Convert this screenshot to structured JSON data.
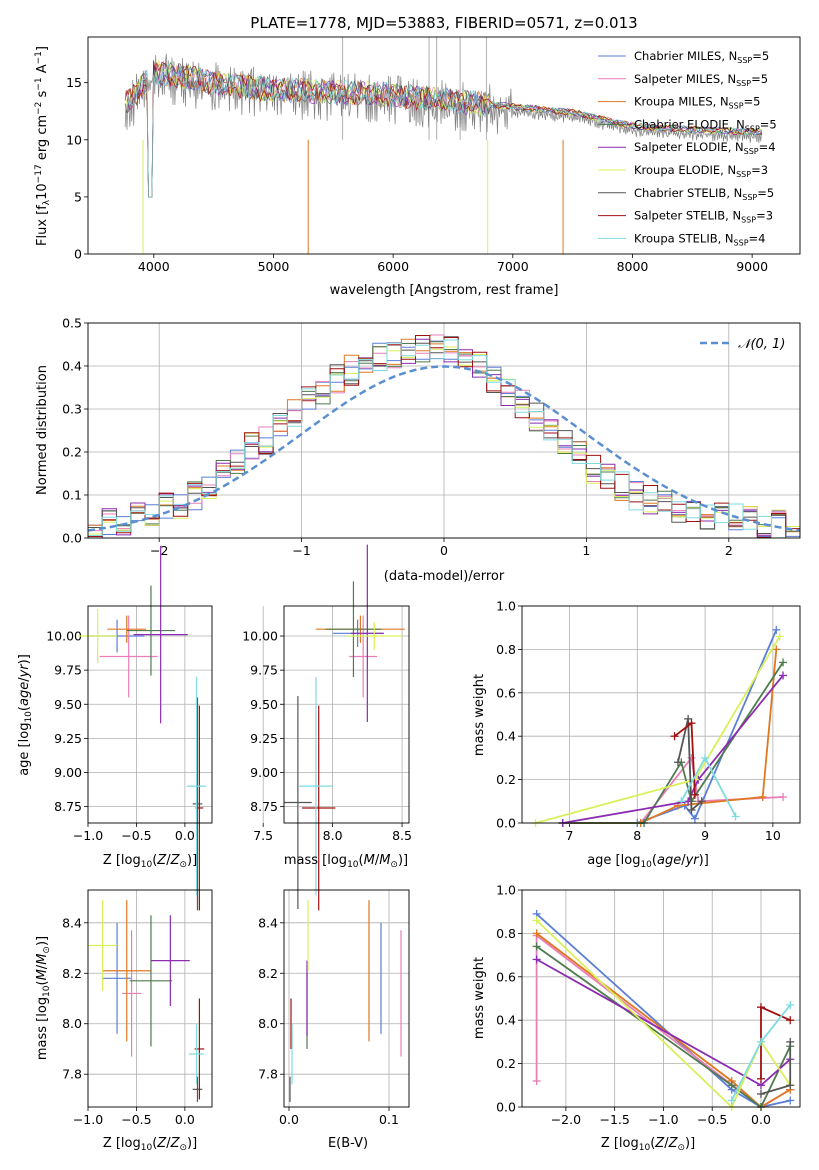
{
  "colors": {
    "series": [
      "#5b7fd6",
      "#e87fb8",
      "#e07820",
      "#4f7b4f",
      "#8b2cb0",
      "#d9f05a",
      "#555555",
      "#a01010",
      "#7edbe0"
    ],
    "grid": "#b0b0b0",
    "reference": "#5b8fd0"
  },
  "panel1": {
    "title": "PLATE=1778, MJD=53883, FIBERID=0571, z=0.013",
    "xlabel": "wavelength [Angstrom, rest frame]",
    "ylabel": "Flux [f_λ 10^-17 erg cm^-2 s^-1 A^-1]",
    "xticks": [
      "4000",
      "5000",
      "6000",
      "7000",
      "8000",
      "9000"
    ],
    "yticks": [
      "0",
      "5",
      "10",
      "15"
    ],
    "legend": [
      {
        "label": "Chabrier MILES, N",
        "sub": "SSP",
        "tail": "=5"
      },
      {
        "label": "Salpeter MILES, N",
        "sub": "SSP",
        "tail": "=5"
      },
      {
        "label": "Kroupa MILES, N",
        "sub": "SSP",
        "tail": "=5"
      },
      {
        "label": "Chabrier ELODIE, N",
        "sub": "SSP",
        "tail": "=5"
      },
      {
        "label": "Salpeter ELODIE, N",
        "sub": "SSP",
        "tail": "=4"
      },
      {
        "label": "Kroupa ELODIE, N",
        "sub": "SSP",
        "tail": "=3"
      },
      {
        "label": "Chabrier STELIB, N",
        "sub": "SSP",
        "tail": "=5"
      },
      {
        "label": "Salpeter STELIB, N",
        "sub": "SSP",
        "tail": "=3"
      },
      {
        "label": "Kroupa STELIB, N",
        "sub": "SSP",
        "tail": "=4"
      }
    ]
  },
  "panel2": {
    "xlabel": "(data-model)/error",
    "ylabel": "Normed distribution",
    "xticks": [
      "−2",
      "−1",
      "0",
      "1",
      "2"
    ],
    "yticks": [
      "0.0",
      "0.1",
      "0.2",
      "0.3",
      "0.4",
      "0.5"
    ],
    "legend_label": "𝒩(0, 1)"
  },
  "panel3": {
    "xlabel": "Z [log₁₀(Z/Z⊙)]",
    "ylabel": "age  [log₁₀(age/yr)]",
    "xticks": [
      "−1.0",
      "−0.5",
      "0.0"
    ],
    "yticks": [
      "8.75",
      "9.00",
      "9.25",
      "9.50",
      "9.75",
      "10.00"
    ]
  },
  "panel4": {
    "xlabel": "mass [log₁₀(M/M⊙)]",
    "xticks": [
      "7.5",
      "8.0",
      "8.5"
    ],
    "yticks": [
      "8.75",
      "9.00",
      "9.25",
      "9.50",
      "9.75",
      "10.00"
    ]
  },
  "panel5": {
    "xlabel": "age  [log₁₀(age/yr)]",
    "ylabel": "mass weight",
    "xticks": [
      "7",
      "8",
      "9",
      "10"
    ],
    "yticks": [
      "0.0",
      "0.2",
      "0.4",
      "0.6",
      "0.8",
      "1.0"
    ]
  },
  "panel6": {
    "xlabel": "Z [log₁₀(Z/Z⊙)]",
    "ylabel": "mass [log₁₀(M/M⊙)]",
    "xticks": [
      "−1.0",
      "−0.5",
      "0.0"
    ],
    "yticks": [
      "7.8",
      "8.0",
      "8.2",
      "8.4"
    ]
  },
  "panel7": {
    "xlabel": "E(B-V)",
    "xticks": [
      "0.0",
      "0.1"
    ],
    "yticks": [
      "7.8",
      "8.0",
      "8.2",
      "8.4"
    ]
  },
  "panel8": {
    "xlabel": "Z [log₁₀(Z/Z⊙)]",
    "ylabel": "mass weight",
    "xticks": [
      "−2.0",
      "−1.5",
      "−1.0",
      "−0.5",
      "0.0"
    ],
    "yticks": [
      "0.0",
      "0.2",
      "0.4",
      "0.6",
      "0.8",
      "1.0"
    ]
  },
  "chart_data": [
    {
      "type": "line",
      "title": "PLATE=1778, MJD=53883, FIBERID=0571, z=0.013",
      "xlabel": "wavelength [Angstrom, rest frame]",
      "ylabel": "Flux [f_λ 10^-17 erg cm^-2 s^-1 A^-1]",
      "xlim": [
        3450,
        9400
      ],
      "ylim": [
        0,
        19
      ],
      "legend_position": "top-right",
      "data": {
        "x": [
          3800,
          4000,
          4200,
          4500,
          5000,
          5500,
          6000,
          6500,
          7000,
          7500,
          8000,
          8500,
          9000
        ],
        "y": [
          13,
          15.5,
          15.2,
          14.6,
          14.0,
          13.8,
          13.5,
          13.0,
          12.5,
          12.0,
          10.8,
          10.5,
          10.3
        ]
      },
      "model": {
        "x": [
          3800,
          4000,
          4200,
          4500,
          5000,
          5500,
          6000,
          6500,
          7000,
          7500,
          8000,
          8500,
          9000
        ],
        "y": [
          14,
          15.8,
          15.3,
          14.7,
          14.2,
          13.9,
          13.6,
          13.1,
          12.6,
          11.8,
          10.8,
          10.5,
          10.3
        ]
      }
    },
    {
      "type": "bar",
      "xlabel": "(data-model)/error",
      "ylabel": "Normed distribution",
      "xlim": [
        -2.5,
        2.5
      ],
      "ylim": [
        0,
        0.5
      ],
      "legend_position": "top-right",
      "bin_width": 0.1,
      "histogram": [
        0.03,
        0.035,
        0.04,
        0.05,
        0.06,
        0.07,
        0.08,
        0.1,
        0.12,
        0.15,
        0.18,
        0.21,
        0.23,
        0.26,
        0.29,
        0.32,
        0.34,
        0.37,
        0.39,
        0.41,
        0.42,
        0.43,
        0.44,
        0.44,
        0.45,
        0.44,
        0.42,
        0.4,
        0.37,
        0.34,
        0.31,
        0.28,
        0.25,
        0.22,
        0.19,
        0.16,
        0.14,
        0.12,
        0.1,
        0.09,
        0.08,
        0.07,
        0.06,
        0.055,
        0.05,
        0.045,
        0.04,
        0.035,
        0.03,
        0.03
      ],
      "reference": "N(0,1)"
    },
    {
      "type": "scatter",
      "xlabel": "Z [log10(Z/Zsun)]",
      "ylabel": "age [log10(age/yr)]",
      "xlim": [
        -1.0,
        0.28
      ],
      "ylim": [
        8.63,
        10.22
      ],
      "points": [
        {
          "x": -0.7,
          "y": 10.0,
          "xerr": 0.28,
          "yerr": 0.12,
          "s": 0
        },
        {
          "x": -0.58,
          "y": 9.85,
          "xerr": 0.3,
          "yerr": 0.3,
          "s": 1
        },
        {
          "x": -0.6,
          "y": 10.05,
          "xerr": 0.2,
          "yerr": 0.1,
          "s": 2
        },
        {
          "x": -0.35,
          "y": 10.04,
          "xerr": 0.25,
          "yerr": 0.33,
          "s": 3
        },
        {
          "x": -0.25,
          "y": 10.01,
          "xerr": 0.28,
          "yerr": 0.65,
          "s": 4
        },
        {
          "x": -0.9,
          "y": 10.0,
          "xerr": 0.2,
          "yerr": 0.2,
          "s": 5
        },
        {
          "x": 0.13,
          "y": 8.77,
          "xerr": 0.05,
          "yerr": 0.78,
          "s": 6
        },
        {
          "x": 0.15,
          "y": 8.74,
          "xerr": 0.04,
          "yerr": 0.75,
          "s": 7
        },
        {
          "x": 0.12,
          "y": 8.9,
          "xerr": 0.1,
          "yerr": 0.8,
          "s": 8
        }
      ]
    },
    {
      "type": "scatter",
      "xlabel": "mass [log10(M/Msun)]",
      "ylabel": "age [log10(age/yr)]",
      "xlim": [
        7.65,
        8.55
      ],
      "ylim": [
        8.63,
        10.22
      ],
      "points": [
        {
          "x": 8.18,
          "y": 10.02,
          "xerr": 0.18,
          "yerr": 0.1,
          "s": 0
        },
        {
          "x": 8.22,
          "y": 9.85,
          "xerr": 0.1,
          "yerr": 0.3,
          "s": 1
        },
        {
          "x": 8.2,
          "y": 10.05,
          "xerr": 0.32,
          "yerr": 0.1,
          "s": 2
        },
        {
          "x": 8.15,
          "y": 10.05,
          "xerr": 0.2,
          "yerr": 0.35,
          "s": 3
        },
        {
          "x": 8.25,
          "y": 10.02,
          "xerr": 0.12,
          "yerr": 0.65,
          "s": 4
        },
        {
          "x": 8.3,
          "y": 10.0,
          "xerr": 0.2,
          "yerr": 0.1,
          "s": 5
        },
        {
          "x": 7.75,
          "y": 8.78,
          "xerr": 0.1,
          "yerr": 0.78,
          "s": 6
        },
        {
          "x": 7.9,
          "y": 8.74,
          "xerr": 0.12,
          "yerr": 0.75,
          "s": 7
        },
        {
          "x": 7.88,
          "y": 8.9,
          "xerr": 0.12,
          "yerr": 0.8,
          "s": 8
        }
      ]
    },
    {
      "type": "line",
      "xlabel": "age [log10(age/yr)]",
      "ylabel": "mass weight",
      "xlim": [
        6.3,
        10.4
      ],
      "ylim": [
        0,
        1
      ],
      "series": [
        {
          "x": [
            6.9,
            8.0,
            8.7,
            8.85,
            10.05
          ],
          "y": [
            0.0,
            0.0,
            0.08,
            0.02,
            0.89
          ],
          "s": 0
        },
        {
          "x": [
            6.9,
            8.05,
            8.8,
            8.9,
            10.15
          ],
          "y": [
            0.0,
            0.0,
            0.3,
            0.1,
            0.12
          ],
          "s": 1
        },
        {
          "x": [
            6.9,
            8.05,
            8.6,
            9.85,
            10.05
          ],
          "y": [
            0.0,
            0.0,
            0.08,
            0.12,
            0.8
          ],
          "s": 2
        },
        {
          "x": [
            6.9,
            8.1,
            8.65,
            8.8,
            10.15
          ],
          "y": [
            0.0,
            0.0,
            0.28,
            0.1,
            0.74
          ],
          "s": 3
        },
        {
          "x": [
            6.9,
            8.75,
            8.9,
            10.15
          ],
          "y": [
            0.0,
            0.1,
            0.2,
            0.68
          ],
          "s": 4
        },
        {
          "x": [
            6.5,
            8.85,
            10.1
          ],
          "y": [
            0.0,
            0.2,
            0.86
          ],
          "s": 5
        },
        {
          "x": [
            8.6,
            8.75,
            8.8,
            8.95
          ],
          "y": [
            0.28,
            0.48,
            0.06,
            0.1
          ],
          "s": 6
        },
        {
          "x": [
            8.55,
            8.8,
            8.85
          ],
          "y": [
            0.4,
            0.46,
            0.13
          ],
          "s": 7
        },
        {
          "x": [
            8.65,
            9.0,
            9.45
          ],
          "y": [
            0.1,
            0.3,
            0.03
          ],
          "s": 8
        }
      ]
    },
    {
      "type": "scatter",
      "xlabel": "Z [log10(Z/Zsun)]",
      "ylabel": "mass [log10(M/Msun)]",
      "xlim": [
        -1.0,
        0.28
      ],
      "ylim": [
        7.67,
        8.53
      ],
      "points": [
        {
          "x": -0.7,
          "y": 8.18,
          "xerr": 0.15,
          "yerr": 0.22,
          "s": 0
        },
        {
          "x": -0.55,
          "y": 8.12,
          "xerr": 0.1,
          "yerr": 0.25,
          "s": 1
        },
        {
          "x": -0.6,
          "y": 8.21,
          "xerr": 0.25,
          "yerr": 0.28,
          "s": 2
        },
        {
          "x": -0.35,
          "y": 8.17,
          "xerr": 0.22,
          "yerr": 0.26,
          "s": 3
        },
        {
          "x": -0.15,
          "y": 8.25,
          "xerr": 0.2,
          "yerr": 0.18,
          "s": 4
        },
        {
          "x": -0.85,
          "y": 8.31,
          "xerr": 0.15,
          "yerr": 0.18,
          "s": 5
        },
        {
          "x": 0.13,
          "y": 7.74,
          "xerr": 0.05,
          "yerr": 0.05,
          "s": 6
        },
        {
          "x": 0.15,
          "y": 7.9,
          "xerr": 0.05,
          "yerr": 0.2,
          "s": 7
        },
        {
          "x": 0.12,
          "y": 7.88,
          "xerr": 0.08,
          "yerr": 0.12,
          "s": 8
        }
      ]
    },
    {
      "type": "scatter",
      "xlabel": "E(B-V)",
      "ylabel": "mass [log10(M/Msun)]",
      "xlim": [
        -0.005,
        0.12
      ],
      "ylim": [
        7.67,
        8.53
      ],
      "points": [
        {
          "x": 0.092,
          "y": 8.18,
          "xerr": 0,
          "yerr": 0.22,
          "s": 0
        },
        {
          "x": 0.112,
          "y": 8.12,
          "xerr": 0,
          "yerr": 0.25,
          "s": 1
        },
        {
          "x": 0.08,
          "y": 8.21,
          "xerr": 0,
          "yerr": 0.28,
          "s": 2
        },
        {
          "x": 0.018,
          "y": 8.05,
          "xerr": 0,
          "yerr": 0.15,
          "s": 3
        },
        {
          "x": 0.018,
          "y": 8.1,
          "xerr": 0,
          "yerr": 0.15,
          "s": 4
        },
        {
          "x": 0.019,
          "y": 8.35,
          "xerr": 0,
          "yerr": 0.14,
          "s": 5
        },
        {
          "x": 0.001,
          "y": 7.74,
          "xerr": 0,
          "yerr": 0.05,
          "s": 6
        },
        {
          "x": 0.002,
          "y": 8.0,
          "xerr": 0,
          "yerr": 0.1,
          "s": 7
        },
        {
          "x": 0.003,
          "y": 7.88,
          "xerr": 0,
          "yerr": 0.12,
          "s": 8
        }
      ]
    },
    {
      "type": "line",
      "xlabel": "Z [log10(Z/Zsun)]",
      "ylabel": "mass weight",
      "xlim": [
        -2.45,
        0.4
      ],
      "ylim": [
        0,
        1
      ],
      "series": [
        {
          "x": [
            -2.3,
            -0.3,
            0.0,
            0.3
          ],
          "y": [
            0.89,
            0.08,
            0.0,
            0.03
          ],
          "s": 0
        },
        {
          "x": [
            -2.3,
            -2.3,
            0.0,
            0.3
          ],
          "y": [
            0.12,
            0.79,
            0.0,
            0.08
          ],
          "s": 1
        },
        {
          "x": [
            -2.3,
            -0.3,
            0.0,
            0.3
          ],
          "y": [
            0.8,
            0.12,
            0.0,
            0.08
          ],
          "s": 2
        },
        {
          "x": [
            -2.3,
            -0.3,
            0.0,
            0.3
          ],
          "y": [
            0.74,
            0.1,
            0.0,
            0.28
          ],
          "s": 3
        },
        {
          "x": [
            -2.3,
            0.0,
            0.3
          ],
          "y": [
            0.68,
            0.1,
            0.22
          ],
          "s": 4
        },
        {
          "x": [
            -2.3,
            -0.3,
            0.0,
            0.3
          ],
          "y": [
            0.86,
            0.0,
            0.3,
            0.1
          ],
          "s": 5
        },
        {
          "x": [
            0.0,
            0.3,
            0.3
          ],
          "y": [
            0.06,
            0.1,
            0.3
          ],
          "s": 6
        },
        {
          "x": [
            0.0,
            0.0,
            0.3
          ],
          "y": [
            0.13,
            0.46,
            0.4
          ],
          "s": 7
        },
        {
          "x": [
            -0.3,
            0.0,
            0.3
          ],
          "y": [
            0.03,
            0.3,
            0.47
          ],
          "s": 8
        }
      ]
    }
  ]
}
